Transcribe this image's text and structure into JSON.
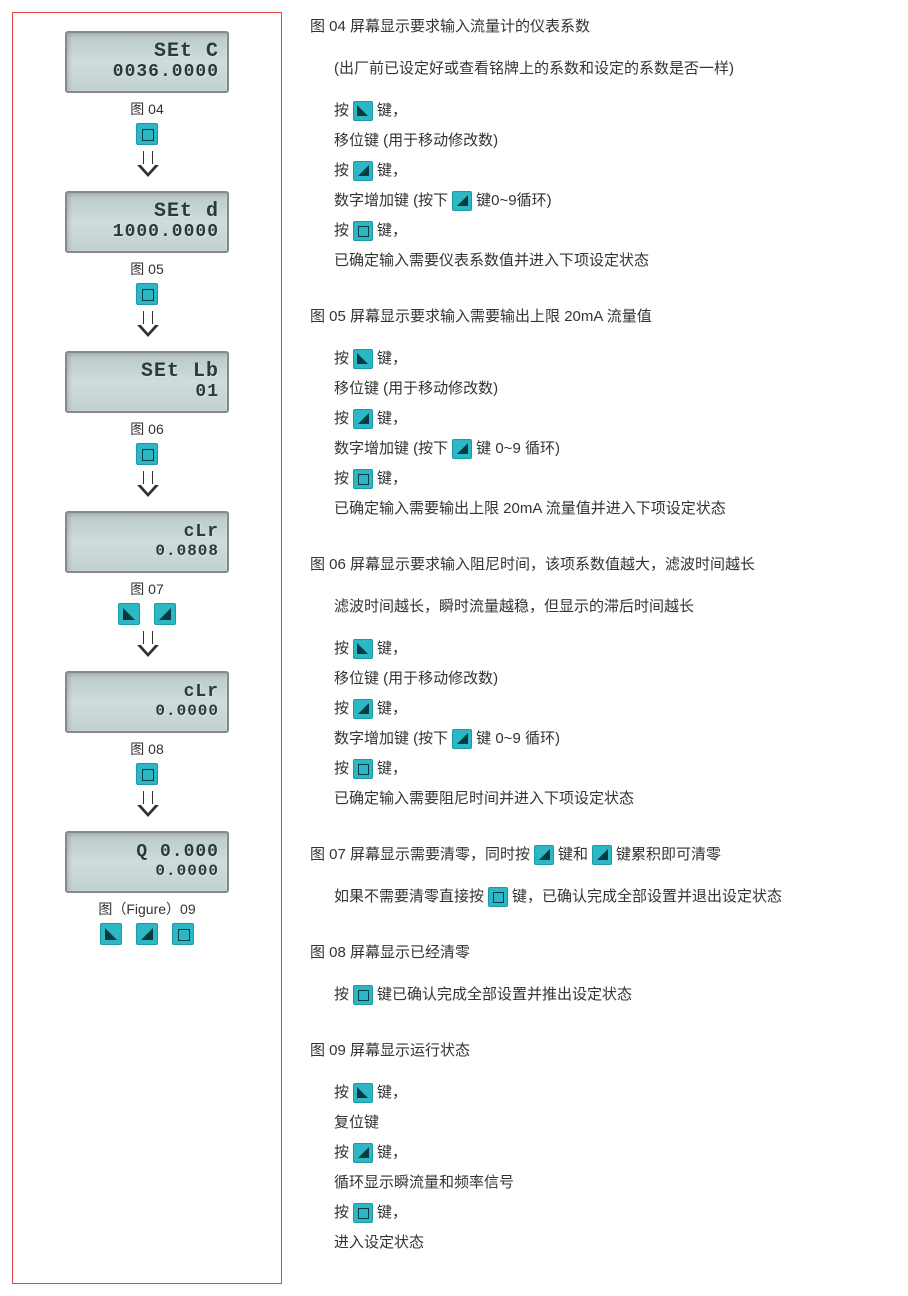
{
  "left": {
    "figs": [
      {
        "top": "SEt   C",
        "bot": "0036.0000",
        "label": "图 04",
        "btns": [
          "sq"
        ],
        "arrow": true
      },
      {
        "top": "SEt   d",
        "bot": "1000.0000",
        "label": "图 05",
        "btns": [
          "sq"
        ],
        "arrow": true
      },
      {
        "top": "SEt  Lb",
        "bot": "01",
        "label": "图 06",
        "btns": [
          "sq"
        ],
        "arrow": true
      },
      {
        "top": "cLr",
        "bot": "0.0808",
        "label": "图 07",
        "btns": [
          "tri-r",
          "tri-l"
        ],
        "arrow": true,
        "small": true
      },
      {
        "top": "cLr",
        "bot": "0.0000",
        "label": "图 08",
        "btns": [
          "sq"
        ],
        "arrow": true,
        "small": true
      },
      {
        "top": "Q    0.000",
        "bot": "0.0000",
        "label": "图（Figure）09",
        "btns": [
          "tri-r",
          "tri-l",
          "sq"
        ],
        "arrow": false,
        "small": true
      }
    ]
  },
  "right": {
    "sections": [
      {
        "title": "图 04 屏幕显示要求输入流量计的仪表系数",
        "sub": "(出厂前已设定好或查看铭牌上的系数和设定的系数是否一样)",
        "steps": [
          {
            "t": "按 |tri-r| 键，"
          },
          {
            "t": "移位键 (用于移动修改数)"
          },
          {
            "t": "按 |tri-l| 键，"
          },
          {
            "t": "数字增加键 (按下 |tri-l| 键0~9循环)"
          },
          {
            "t": "按 |sq| 键，"
          },
          {
            "t": "已确定输入需要仪表系数值并进入下项设定状态"
          }
        ]
      },
      {
        "title": "图 05 屏幕显示要求输入需要输出上限 20mA 流量值",
        "steps": [
          {
            "t": "按 |tri-r| 键，"
          },
          {
            "t": "移位键 (用于移动修改数)"
          },
          {
            "t": "按 |tri-l| 键，"
          },
          {
            "t": "数字增加键 (按下 |tri-l| 键 0~9 循环)"
          },
          {
            "t": "按 |sq| 键，"
          },
          {
            "t": "已确定输入需要输出上限 20mA 流量值并进入下项设定状态"
          }
        ]
      },
      {
        "title": "图 06 屏幕显示要求输入阻尼时间，该项系数值越大，滤波时间越长",
        "sub": "滤波时间越长，瞬时流量越稳，但显示的滞后时间越长",
        "steps": [
          {
            "t": "按 |tri-r| 键，"
          },
          {
            "t": "移位键 (用于移动修改数)"
          },
          {
            "t": "按 |tri-l| 键，"
          },
          {
            "t": "数字增加键 (按下 |tri-l| 键 0~9 循环)"
          },
          {
            "t": "按 |sq| 键，"
          },
          {
            "t": "已确定输入需要阻尼时间并进入下项设定状态"
          }
        ]
      },
      {
        "title": "图 07 屏幕显示需要清零，同时按 |tri-l| 键和 |tri-l| 键累积即可清零",
        "sub": "如果不需要清零直接按 |sq| 键，已确认完成全部设置并退出设定状态"
      },
      {
        "title": "图 08 屏幕显示已经清零",
        "sub": "按 |sq| 键已确认完成全部设置并推出设定状态"
      },
      {
        "title": "图 09 屏幕显示运行状态",
        "steps": [
          {
            "t": "按 |tri-r| 键，"
          },
          {
            "t": "复位键"
          },
          {
            "t": "按 |tri-l| 键，"
          },
          {
            "t": "循环显示瞬流量和频率信号"
          },
          {
            "t": "按 |sq| 键，"
          },
          {
            "t": "进入设定状态"
          }
        ]
      }
    ]
  }
}
